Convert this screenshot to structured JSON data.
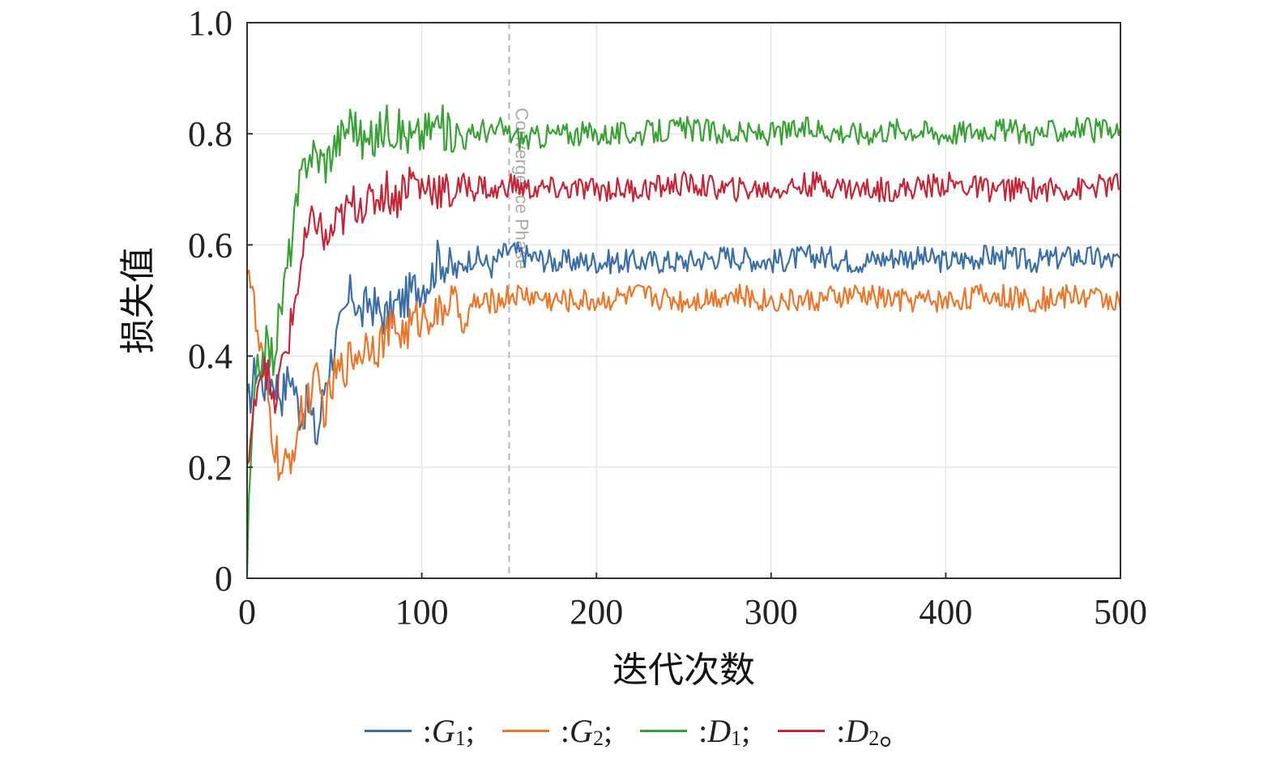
{
  "chart_data": {
    "type": "line",
    "xlabel": "迭代次数",
    "ylabel": "损失值",
    "xlim": [
      0,
      500
    ],
    "ylim": [
      0,
      1.0
    ],
    "xticks": [
      0,
      100,
      200,
      300,
      400,
      500
    ],
    "xtick_labels": [
      "0",
      "100",
      "200",
      "300",
      "400",
      "500"
    ],
    "yticks": [
      0,
      0.2,
      0.4,
      0.6,
      0.8,
      1.0
    ],
    "ytick_labels": [
      "0",
      "0.2",
      "0.4",
      "0.6",
      "0.8",
      "1.0"
    ],
    "grid": true,
    "vline": {
      "x": 150,
      "label": "Convergence Phase"
    },
    "legend_position": "bottom",
    "series": [
      {
        "name": "G1",
        "symbol": "G",
        "sub": "1",
        "prefix": ": ",
        "suffix": ";",
        "color": "#3a6ea5",
        "x": [
          0,
          5,
          10,
          15,
          20,
          25,
          30,
          35,
          40,
          45,
          50,
          55,
          60,
          65,
          70,
          75,
          80,
          85,
          90,
          95,
          100,
          105,
          110,
          115,
          120,
          125,
          130,
          135,
          140,
          145,
          150,
          160,
          175,
          200,
          225,
          250,
          275,
          300,
          325,
          350,
          375,
          400,
          425,
          450,
          475,
          500
        ],
        "y": [
          0.3,
          0.38,
          0.35,
          0.36,
          0.33,
          0.37,
          0.3,
          0.31,
          0.25,
          0.36,
          0.42,
          0.46,
          0.52,
          0.47,
          0.5,
          0.48,
          0.47,
          0.49,
          0.5,
          0.52,
          0.53,
          0.54,
          0.58,
          0.56,
          0.55,
          0.57,
          0.58,
          0.57,
          0.56,
          0.58,
          0.59,
          0.58,
          0.57,
          0.57,
          0.57,
          0.57,
          0.58,
          0.57,
          0.58,
          0.57,
          0.58,
          0.57,
          0.58,
          0.57,
          0.58,
          0.57
        ]
      },
      {
        "name": "G2",
        "symbol": "G",
        "sub": "2",
        "prefix": ": ",
        "suffix": ";",
        "color": "#e8772e",
        "x": [
          0,
          3,
          5,
          10,
          15,
          20,
          25,
          30,
          35,
          40,
          45,
          50,
          55,
          60,
          65,
          70,
          75,
          80,
          85,
          90,
          95,
          100,
          105,
          110,
          115,
          120,
          125,
          130,
          135,
          140,
          145,
          150,
          160,
          175,
          200,
          225,
          250,
          275,
          300,
          325,
          350,
          375,
          400,
          425,
          450,
          475,
          500
        ],
        "y": [
          0.58,
          0.52,
          0.45,
          0.36,
          0.25,
          0.18,
          0.22,
          0.28,
          0.33,
          0.35,
          0.3,
          0.36,
          0.38,
          0.4,
          0.41,
          0.43,
          0.42,
          0.44,
          0.45,
          0.44,
          0.46,
          0.47,
          0.48,
          0.47,
          0.5,
          0.49,
          0.45,
          0.5,
          0.49,
          0.5,
          0.5,
          0.51,
          0.51,
          0.5,
          0.5,
          0.51,
          0.5,
          0.51,
          0.5,
          0.5,
          0.51,
          0.5,
          0.5,
          0.51,
          0.5,
          0.51,
          0.5
        ]
      },
      {
        "name": "D1",
        "symbol": "D",
        "sub": "1",
        "prefix": ": ",
        "suffix": ";",
        "color": "#3aa037",
        "x": [
          0,
          2,
          5,
          10,
          15,
          20,
          25,
          30,
          35,
          40,
          45,
          50,
          55,
          60,
          65,
          70,
          75,
          80,
          85,
          90,
          95,
          100,
          105,
          110,
          115,
          120,
          125,
          130,
          135,
          140,
          145,
          150,
          160,
          175,
          200,
          225,
          250,
          275,
          300,
          325,
          350,
          375,
          400,
          425,
          450,
          475,
          500
        ],
        "y": [
          0.02,
          0.2,
          0.35,
          0.42,
          0.4,
          0.5,
          0.6,
          0.7,
          0.77,
          0.76,
          0.75,
          0.78,
          0.8,
          0.83,
          0.79,
          0.78,
          0.8,
          0.82,
          0.81,
          0.8,
          0.79,
          0.8,
          0.81,
          0.82,
          0.8,
          0.81,
          0.79,
          0.8,
          0.81,
          0.8,
          0.81,
          0.8,
          0.79,
          0.8,
          0.8,
          0.8,
          0.81,
          0.8,
          0.8,
          0.81,
          0.8,
          0.81,
          0.8,
          0.81,
          0.8,
          0.81,
          0.8
        ]
      },
      {
        "name": "D2",
        "symbol": "D",
        "sub": "2",
        "prefix": ": ",
        "suffix": "。",
        "color": "#c0283a",
        "x": [
          0,
          3,
          5,
          10,
          15,
          20,
          25,
          30,
          35,
          40,
          45,
          50,
          55,
          60,
          65,
          70,
          75,
          80,
          85,
          90,
          95,
          100,
          105,
          110,
          115,
          120,
          125,
          130,
          135,
          140,
          145,
          150,
          160,
          175,
          200,
          225,
          250,
          275,
          300,
          325,
          350,
          375,
          400,
          425,
          450,
          475,
          500
        ],
        "y": [
          0.2,
          0.25,
          0.35,
          0.4,
          0.3,
          0.38,
          0.45,
          0.55,
          0.62,
          0.65,
          0.6,
          0.63,
          0.65,
          0.67,
          0.68,
          0.67,
          0.69,
          0.7,
          0.68,
          0.71,
          0.72,
          0.7,
          0.71,
          0.7,
          0.69,
          0.7,
          0.71,
          0.7,
          0.71,
          0.69,
          0.7,
          0.71,
          0.7,
          0.7,
          0.7,
          0.7,
          0.71,
          0.7,
          0.7,
          0.71,
          0.7,
          0.7,
          0.71,
          0.7,
          0.7,
          0.7,
          0.71
        ]
      }
    ]
  }
}
